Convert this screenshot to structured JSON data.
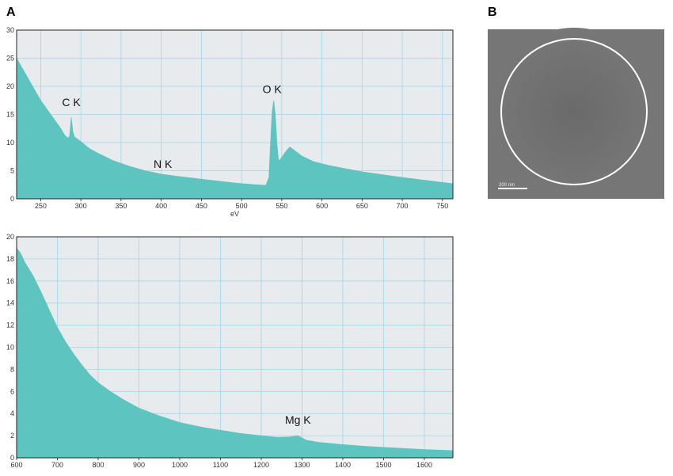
{
  "figure": {
    "panel_a_label": "A",
    "panel_b_label": "B",
    "colors": {
      "fill": "#5ec4bf",
      "plot_bg": "#e8ebed",
      "grid": "#9fd6ea",
      "micro_bg": "#6b6b6b",
      "ring": "#ffffff"
    },
    "micrograph": {
      "scalebar_label": "200 nm"
    }
  },
  "chart_data": [
    {
      "type": "area",
      "xlabel": "eV",
      "ylabel": "",
      "xlim": [
        220,
        763
      ],
      "ylim": [
        0,
        30
      ],
      "x_ticks": [
        250,
        300,
        350,
        400,
        450,
        500,
        550,
        600,
        650,
        700,
        750
      ],
      "y_ticks": [
        0,
        5,
        10,
        15,
        20,
        25,
        30
      ],
      "grid": true,
      "series": [
        {
          "x": [
            220,
            230,
            240,
            250,
            260,
            270,
            275,
            280,
            284,
            286,
            288,
            290,
            292,
            296,
            300,
            310,
            320,
            340,
            360,
            380,
            400,
            420,
            450,
            480,
            500,
            520,
            530,
            534,
            536,
            538,
            540,
            542,
            544,
            546,
            548,
            552,
            556,
            560,
            566,
            575,
            590,
            610,
            650,
            700,
            763
          ],
          "y": [
            25,
            22.5,
            20,
            17.5,
            15.5,
            13.5,
            12.5,
            11.3,
            10.8,
            11.2,
            14.5,
            12,
            11,
            10.6,
            10.2,
            9,
            8.2,
            6.8,
            5.8,
            5,
            4.4,
            4,
            3.5,
            3,
            2.7,
            2.5,
            2.4,
            3.8,
            10,
            15.5,
            17.5,
            15,
            10,
            6.8,
            7,
            7.8,
            8.6,
            9.2,
            8.6,
            7.6,
            6.6,
            5.9,
            4.8,
            3.8,
            2.7
          ]
        }
      ],
      "annotations": [
        {
          "text": "C K",
          "x": 288,
          "y": 16.5
        },
        {
          "text": "N K",
          "x": 402,
          "y": 5.5
        },
        {
          "text": "O K",
          "x": 538,
          "y": 18.8
        }
      ]
    },
    {
      "type": "area",
      "xlabel": "",
      "ylabel": "",
      "xlim": [
        600,
        1670
      ],
      "ylim": [
        0,
        20
      ],
      "x_ticks": [
        600,
        700,
        800,
        900,
        1000,
        1100,
        1200,
        1300,
        1400,
        1500,
        1600
      ],
      "y_ticks": [
        0,
        2,
        4,
        6,
        8,
        10,
        12,
        14,
        16,
        18,
        20
      ],
      "grid": true,
      "series": [
        {
          "x": [
            600,
            610,
            620,
            640,
            660,
            680,
            700,
            720,
            740,
            760,
            780,
            800,
            830,
            860,
            900,
            950,
            1000,
            1050,
            1100,
            1150,
            1200,
            1240,
            1270,
            1290,
            1310,
            1340,
            1400,
            1450,
            1500,
            1550,
            1600,
            1670
          ],
          "y": [
            19,
            18.5,
            17.7,
            16.5,
            15,
            13.4,
            11.8,
            10.5,
            9.4,
            8.4,
            7.5,
            6.8,
            6,
            5.3,
            4.5,
            3.8,
            3.2,
            2.8,
            2.5,
            2.2,
            2,
            1.85,
            1.9,
            2,
            1.6,
            1.4,
            1.2,
            1.05,
            0.95,
            0.85,
            0.75,
            0.65
          ]
        }
      ],
      "annotations": [
        {
          "text": "Mg K",
          "x": 1290,
          "y": 3.1
        }
      ]
    }
  ]
}
